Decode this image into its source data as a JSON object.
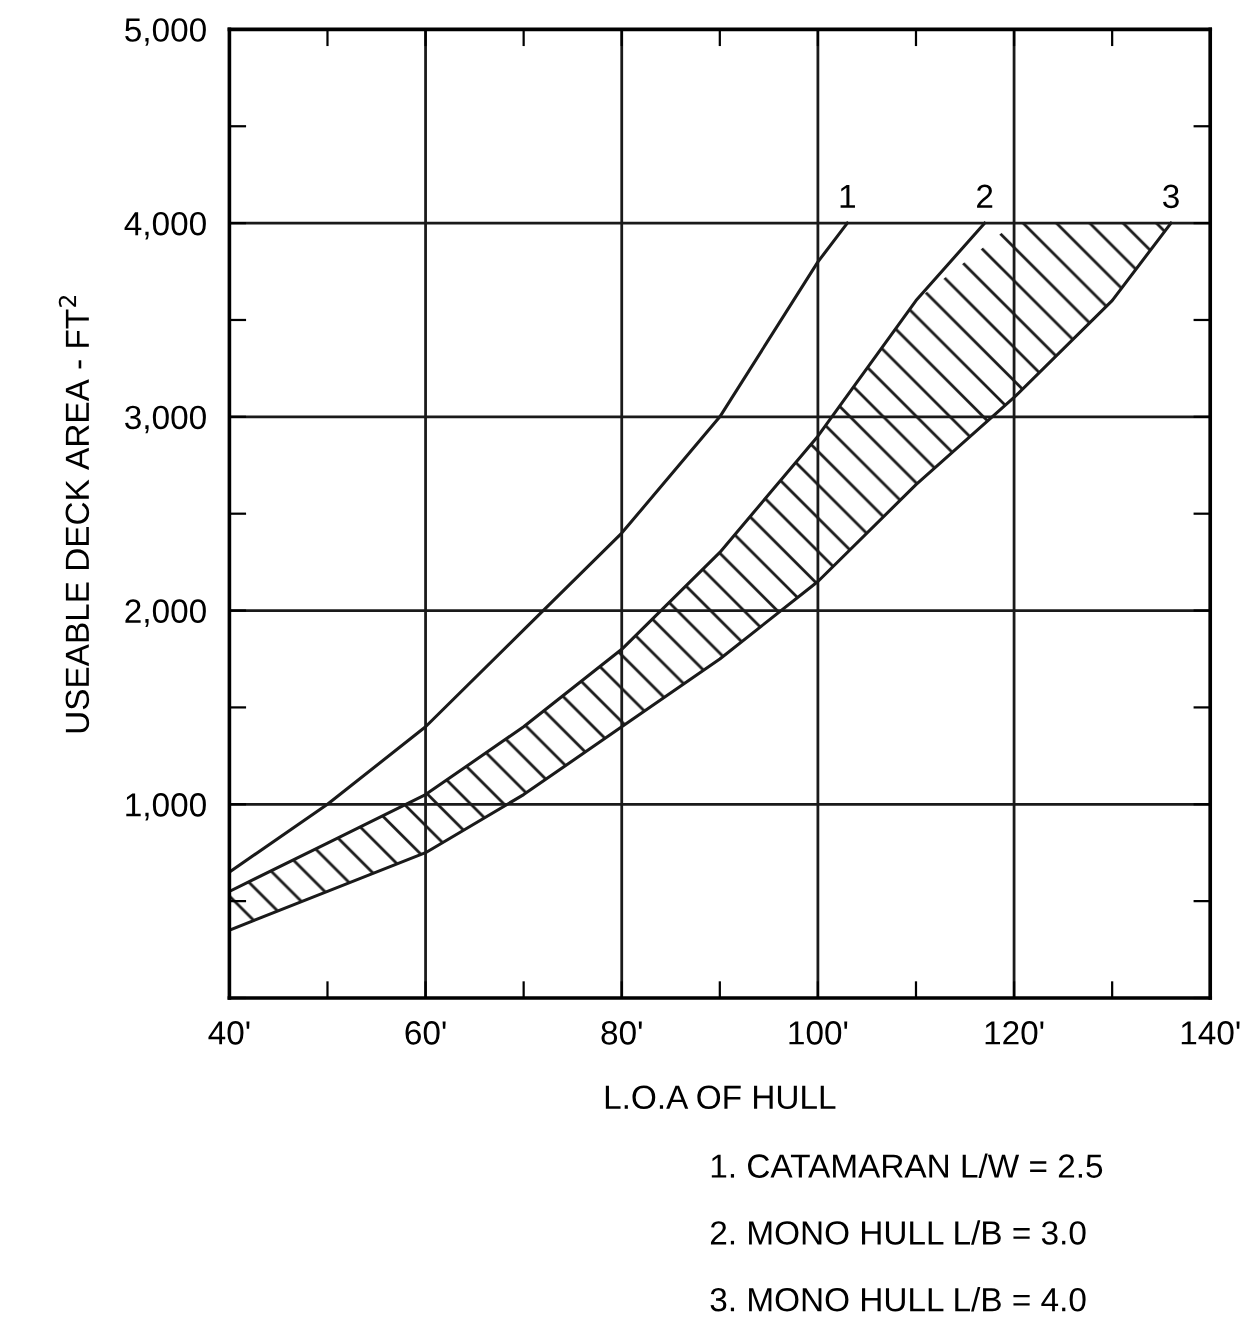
{
  "chart_data": {
    "type": "line",
    "xlabel": "L.O.A OF HULL",
    "ylabel": "USEABLE DECK AREA - FT$^{2}$",
    "series": [
      {
        "name": "1",
        "color": "#1a1a1a",
        "x": [
          40,
          50,
          60,
          70,
          80,
          90,
          100,
          103
        ],
        "values": [
          650,
          1000,
          1400,
          1900,
          2400,
          3000,
          3800,
          4000
        ]
      },
      {
        "name": "2",
        "color": "#1a1a1a",
        "x": [
          40,
          50,
          60,
          70,
          80,
          90,
          100,
          110,
          117
        ],
        "values": [
          550,
          800,
          1050,
          1400,
          1800,
          2300,
          2900,
          3600,
          4000
        ]
      },
      {
        "name": "3",
        "color": "#1a1a1a",
        "x": [
          40,
          50,
          60,
          70,
          80,
          90,
          100,
          110,
          120,
          130,
          136
        ],
        "values": [
          350,
          550,
          750,
          1050,
          1400,
          1750,
          2150,
          2650,
          3100,
          3600,
          4000
        ],
        "lower": [
          350,
          550,
          750,
          1050,
          1400,
          1750,
          2150,
          2650,
          3100,
          3600,
          4000
        ],
        "upper": [
          550,
          800,
          1050,
          1400,
          1800,
          2300,
          2900,
          3600,
          4000,
          4000,
          4000
        ]
      }
    ],
    "xlim": [
      40,
      140
    ],
    "ylim": [
      0,
      5000
    ],
    "xticks": [
      {
        "value": 40,
        "label": "40'"
      },
      {
        "value": 50,
        "label": null
      },
      {
        "value": 60,
        "label": "60'"
      },
      {
        "value": 70,
        "label": null
      },
      {
        "value": 80,
        "label": "80'"
      },
      {
        "value": 90,
        "label": null
      },
      {
        "value": 100,
        "label": "100'"
      },
      {
        "value": 110,
        "label": null
      },
      {
        "value": 120,
        "label": "120'"
      },
      {
        "value": 130,
        "label": null
      },
      {
        "value": 140,
        "label": "140'"
      }
    ],
    "yticks": [
      {
        "value": 0,
        "label": null
      },
      {
        "value": 500,
        "label": null
      },
      {
        "value": 1000,
        "label": "1,000"
      },
      {
        "value": 1500,
        "label": null
      },
      {
        "value": 2000,
        "label": "2,000"
      },
      {
        "value": 2500,
        "label": null
      },
      {
        "value": 3000,
        "label": "3,000"
      },
      {
        "value": 3500,
        "label": null
      },
      {
        "value": 4000,
        "label": "4,000"
      },
      {
        "value": 4500,
        "label": null
      },
      {
        "value": 5000,
        "label": "5,000"
      }
    ],
    "grid": true,
    "marker": "none",
    "line_style": "solid",
    "annotations": [
      "1. CATAMARAN L/W = 2.5",
      "2. MONO HULL L/B = 3.0",
      "3. MONO HULL L/B = 4.0"
    ]
  }
}
